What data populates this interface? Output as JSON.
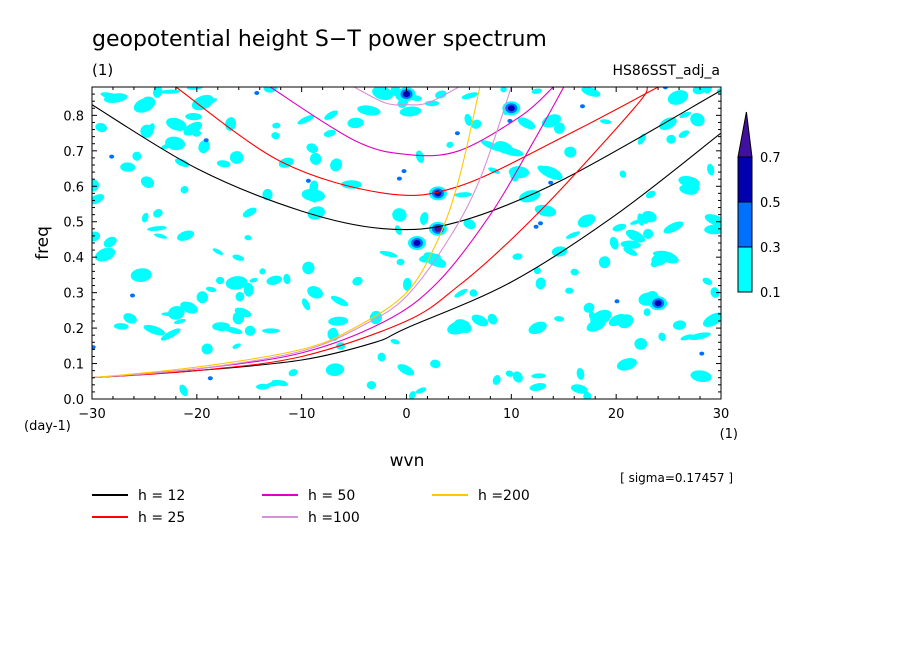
{
  "chart_data": {
    "type": "contour",
    "title": "geopotential height S−T power spectrum",
    "subtitle_left": "(1)",
    "subtitle_right": "HS86SST_adj_a",
    "xlabel": "wvn",
    "ylabel": "freq",
    "x_unit": "(1)",
    "y_unit": "(day-1)",
    "xlim": [
      -30,
      30
    ],
    "ylim": [
      0,
      0.88
    ],
    "x_ticks": [
      -30,
      -20,
      -10,
      0,
      10,
      20,
      30
    ],
    "x_tick_labels": [
      "−30",
      "−20",
      "−10",
      "0",
      "10",
      "20",
      "30"
    ],
    "y_ticks": [
      0.0,
      0.1,
      0.2,
      0.3,
      0.4,
      0.5,
      0.6,
      0.7,
      0.8
    ],
    "y_tick_labels": [
      "0.0",
      "0.1",
      "0.2",
      "0.3",
      "0.4",
      "0.5",
      "0.6",
      "0.7",
      "0.8"
    ],
    "sigma_note": "[ sigma=0.17457 ]",
    "colorbar": {
      "levels": [
        "0.1",
        "0.3",
        "0.5",
        "0.7"
      ],
      "colors": [
        "#00ffff",
        "#0070ff",
        "#0000b0",
        "#4010a0"
      ]
    },
    "series": [
      {
        "name": "h = 12",
        "color": "#000000"
      },
      {
        "name": "h = 25",
        "color": "#ff0000"
      },
      {
        "name": "h = 50",
        "color": "#e000c0"
      },
      {
        "name": "h =100",
        "color": "#d890d8"
      },
      {
        "name": "h =200",
        "color": "#ffc800"
      }
    ],
    "curves": {
      "h = 12": {
        "upper": [
          [
            -30,
            0.83
          ],
          [
            -20,
            0.65
          ],
          [
            -10,
            0.53
          ],
          [
            -2,
            0.48
          ],
          [
            5,
            0.5
          ],
          [
            15,
            0.62
          ],
          [
            30,
            0.87
          ]
        ],
        "lower": [
          [
            -30,
            0.06
          ],
          [
            -20,
            0.08
          ],
          [
            -10,
            0.11
          ],
          [
            -3,
            0.16
          ],
          [
            0,
            0.2
          ],
          [
            10,
            0.33
          ],
          [
            20,
            0.52
          ],
          [
            30,
            0.75
          ]
        ]
      },
      "h = 25": {
        "upper": [
          [
            -22,
            0.88
          ],
          [
            -12,
            0.67
          ],
          [
            -2,
            0.58
          ],
          [
            5,
            0.6
          ],
          [
            15,
            0.74
          ],
          [
            24,
            0.88
          ]
        ],
        "lower": [
          [
            -30,
            0.06
          ],
          [
            -20,
            0.08
          ],
          [
            -10,
            0.12
          ],
          [
            0,
            0.22
          ],
          [
            5,
            0.32
          ],
          [
            10,
            0.45
          ],
          [
            15,
            0.6
          ],
          [
            22,
            0.83
          ],
          [
            23,
            0.88
          ]
        ]
      },
      "h = 50": {
        "upper": [
          [
            -13,
            0.88
          ],
          [
            -5,
            0.73
          ],
          [
            0,
            0.69
          ],
          [
            5,
            0.7
          ],
          [
            11,
            0.8
          ],
          [
            14,
            0.88
          ]
        ],
        "lower": [
          [
            -30,
            0.06
          ],
          [
            -20,
            0.085
          ],
          [
            -10,
            0.13
          ],
          [
            -2,
            0.22
          ],
          [
            3,
            0.33
          ],
          [
            8,
            0.52
          ],
          [
            12,
            0.72
          ],
          [
            15,
            0.88
          ]
        ]
      },
      "h =100": {
        "upper": [
          [
            -5,
            0.88
          ],
          [
            -2,
            0.835
          ],
          [
            0,
            0.83
          ],
          [
            2,
            0.835
          ],
          [
            5,
            0.88
          ]
        ],
        "lower": [
          [
            -30,
            0.06
          ],
          [
            -20,
            0.085
          ],
          [
            -10,
            0.135
          ],
          [
            -4,
            0.21
          ],
          [
            0,
            0.29
          ],
          [
            4,
            0.45
          ],
          [
            7,
            0.62
          ],
          [
            10,
            0.88
          ]
        ]
      },
      "h =200": {
        "lower": [
          [
            -30,
            0.06
          ],
          [
            -20,
            0.09
          ],
          [
            -10,
            0.14
          ],
          [
            -5,
            0.2
          ],
          [
            0,
            0.3
          ],
          [
            3,
            0.45
          ],
          [
            5,
            0.62
          ],
          [
            7,
            0.88
          ]
        ]
      }
    },
    "peaks": [
      {
        "x": 3,
        "y": 0.48,
        "level": "0.7"
      },
      {
        "x": 3,
        "y": 0.58,
        "level": "0.5"
      },
      {
        "x": 0,
        "y": 0.86,
        "level": "0.5"
      },
      {
        "x": 10,
        "y": 0.82,
        "level": "0.5"
      },
      {
        "x": 1,
        "y": 0.44,
        "level": "0.5"
      },
      {
        "x": 24,
        "y": 0.27,
        "level": "0.5"
      }
    ]
  }
}
